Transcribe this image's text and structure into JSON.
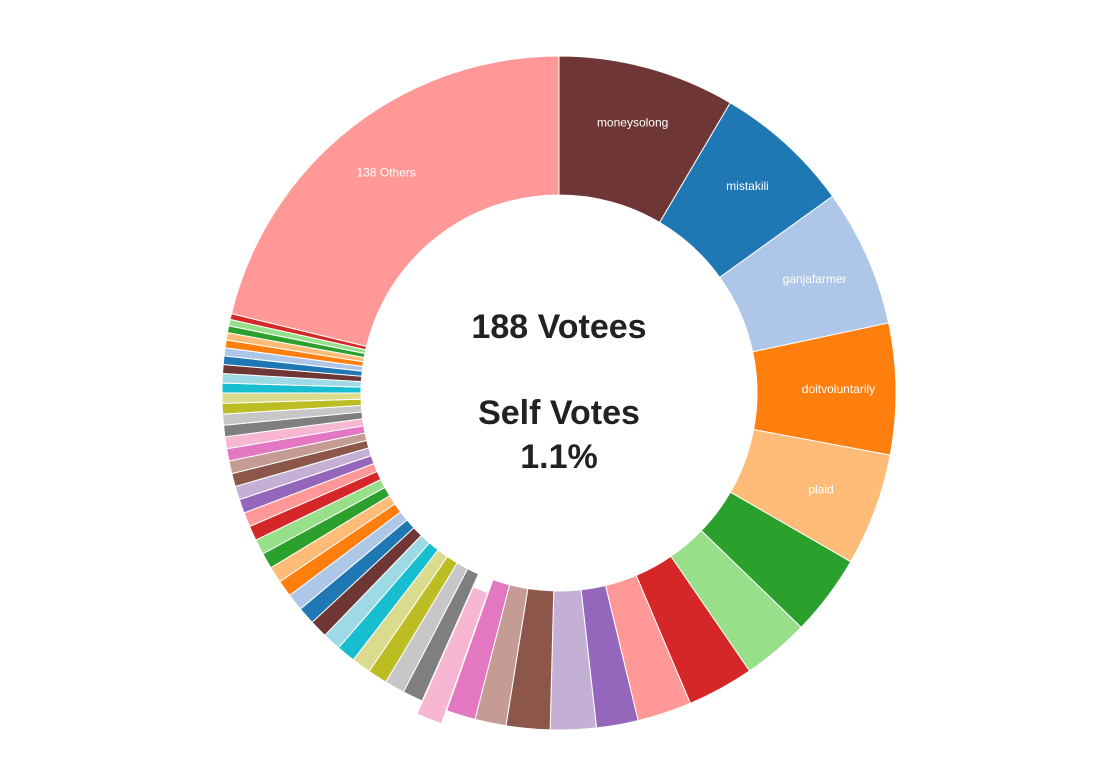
{
  "chart_data": {
    "type": "donut",
    "categories": [
      "moneysolong",
      "mistakili",
      "ganjafarmer",
      "doitvoluntarily",
      "plaid",
      null,
      null,
      null,
      null,
      null,
      null,
      null,
      null,
      null,
      null,
      null,
      null,
      null,
      null,
      null,
      null,
      null,
      null,
      null,
      null,
      null,
      null,
      null,
      null,
      null,
      null,
      null,
      null,
      null,
      null,
      null,
      null,
      null,
      null,
      null,
      null,
      null,
      null,
      null,
      null,
      null,
      null,
      null,
      null,
      null,
      "138 Others"
    ],
    "values": [
      8.5,
      6.6,
      6.6,
      6.3,
      5.4,
      3.9,
      3.2,
      3.2,
      2.6,
      2.0,
      2.2,
      2.1,
      1.5,
      1.4,
      1.25,
      0.98,
      0.96,
      0.94,
      0.92,
      0.9,
      0.88,
      0.86,
      0.84,
      0.82,
      0.8,
      0.78,
      0.76,
      0.73,
      0.71,
      0.69,
      0.67,
      0.65,
      0.63,
      0.61,
      0.59,
      0.57,
      0.55,
      0.53,
      0.51,
      0.49,
      0.47,
      0.45,
      0.43,
      0.41,
      0.39,
      0.37,
      0.35,
      0.33,
      0.31,
      0.28,
      21.25
    ],
    "colors": [
      "#6e3634",
      "#1f77b4",
      "#aec7e8",
      "#ff7f0e",
      "#ffbb78",
      "#2ca02c",
      "#98df8a",
      "#d62728",
      "#ff9896",
      "#9467bd",
      "#c5b0d5",
      "#8c564b",
      "#c49c94",
      "#e377c2",
      "#f7b6d2",
      "#7f7f7f",
      "#c7c7c7",
      "#bcbd22",
      "#dbdb8d",
      "#17becf",
      "#9edae5",
      "#6e3634",
      "#1f77b4",
      "#aec7e8",
      "#ff7f0e",
      "#ffbb78",
      "#2ca02c",
      "#98df8a",
      "#d62728",
      "#ff9896",
      "#9467bd",
      "#c5b0d5",
      "#8c564b",
      "#c49c94",
      "#e377c2",
      "#f7b6d2",
      "#7f7f7f",
      "#c7c7c7",
      "#bcbd22",
      "#dbdb8d",
      "#17becf",
      "#9edae5",
      "#6e3634",
      "#1f77b4",
      "#aec7e8",
      "#ff7f0e",
      "#ffbb78",
      "#2ca02c",
      "#98df8a",
      "#d62728",
      "#ff9896"
    ],
    "exploded": 14,
    "center_text": [
      "188 Votees",
      "Self Votes",
      "1.1%"
    ]
  }
}
